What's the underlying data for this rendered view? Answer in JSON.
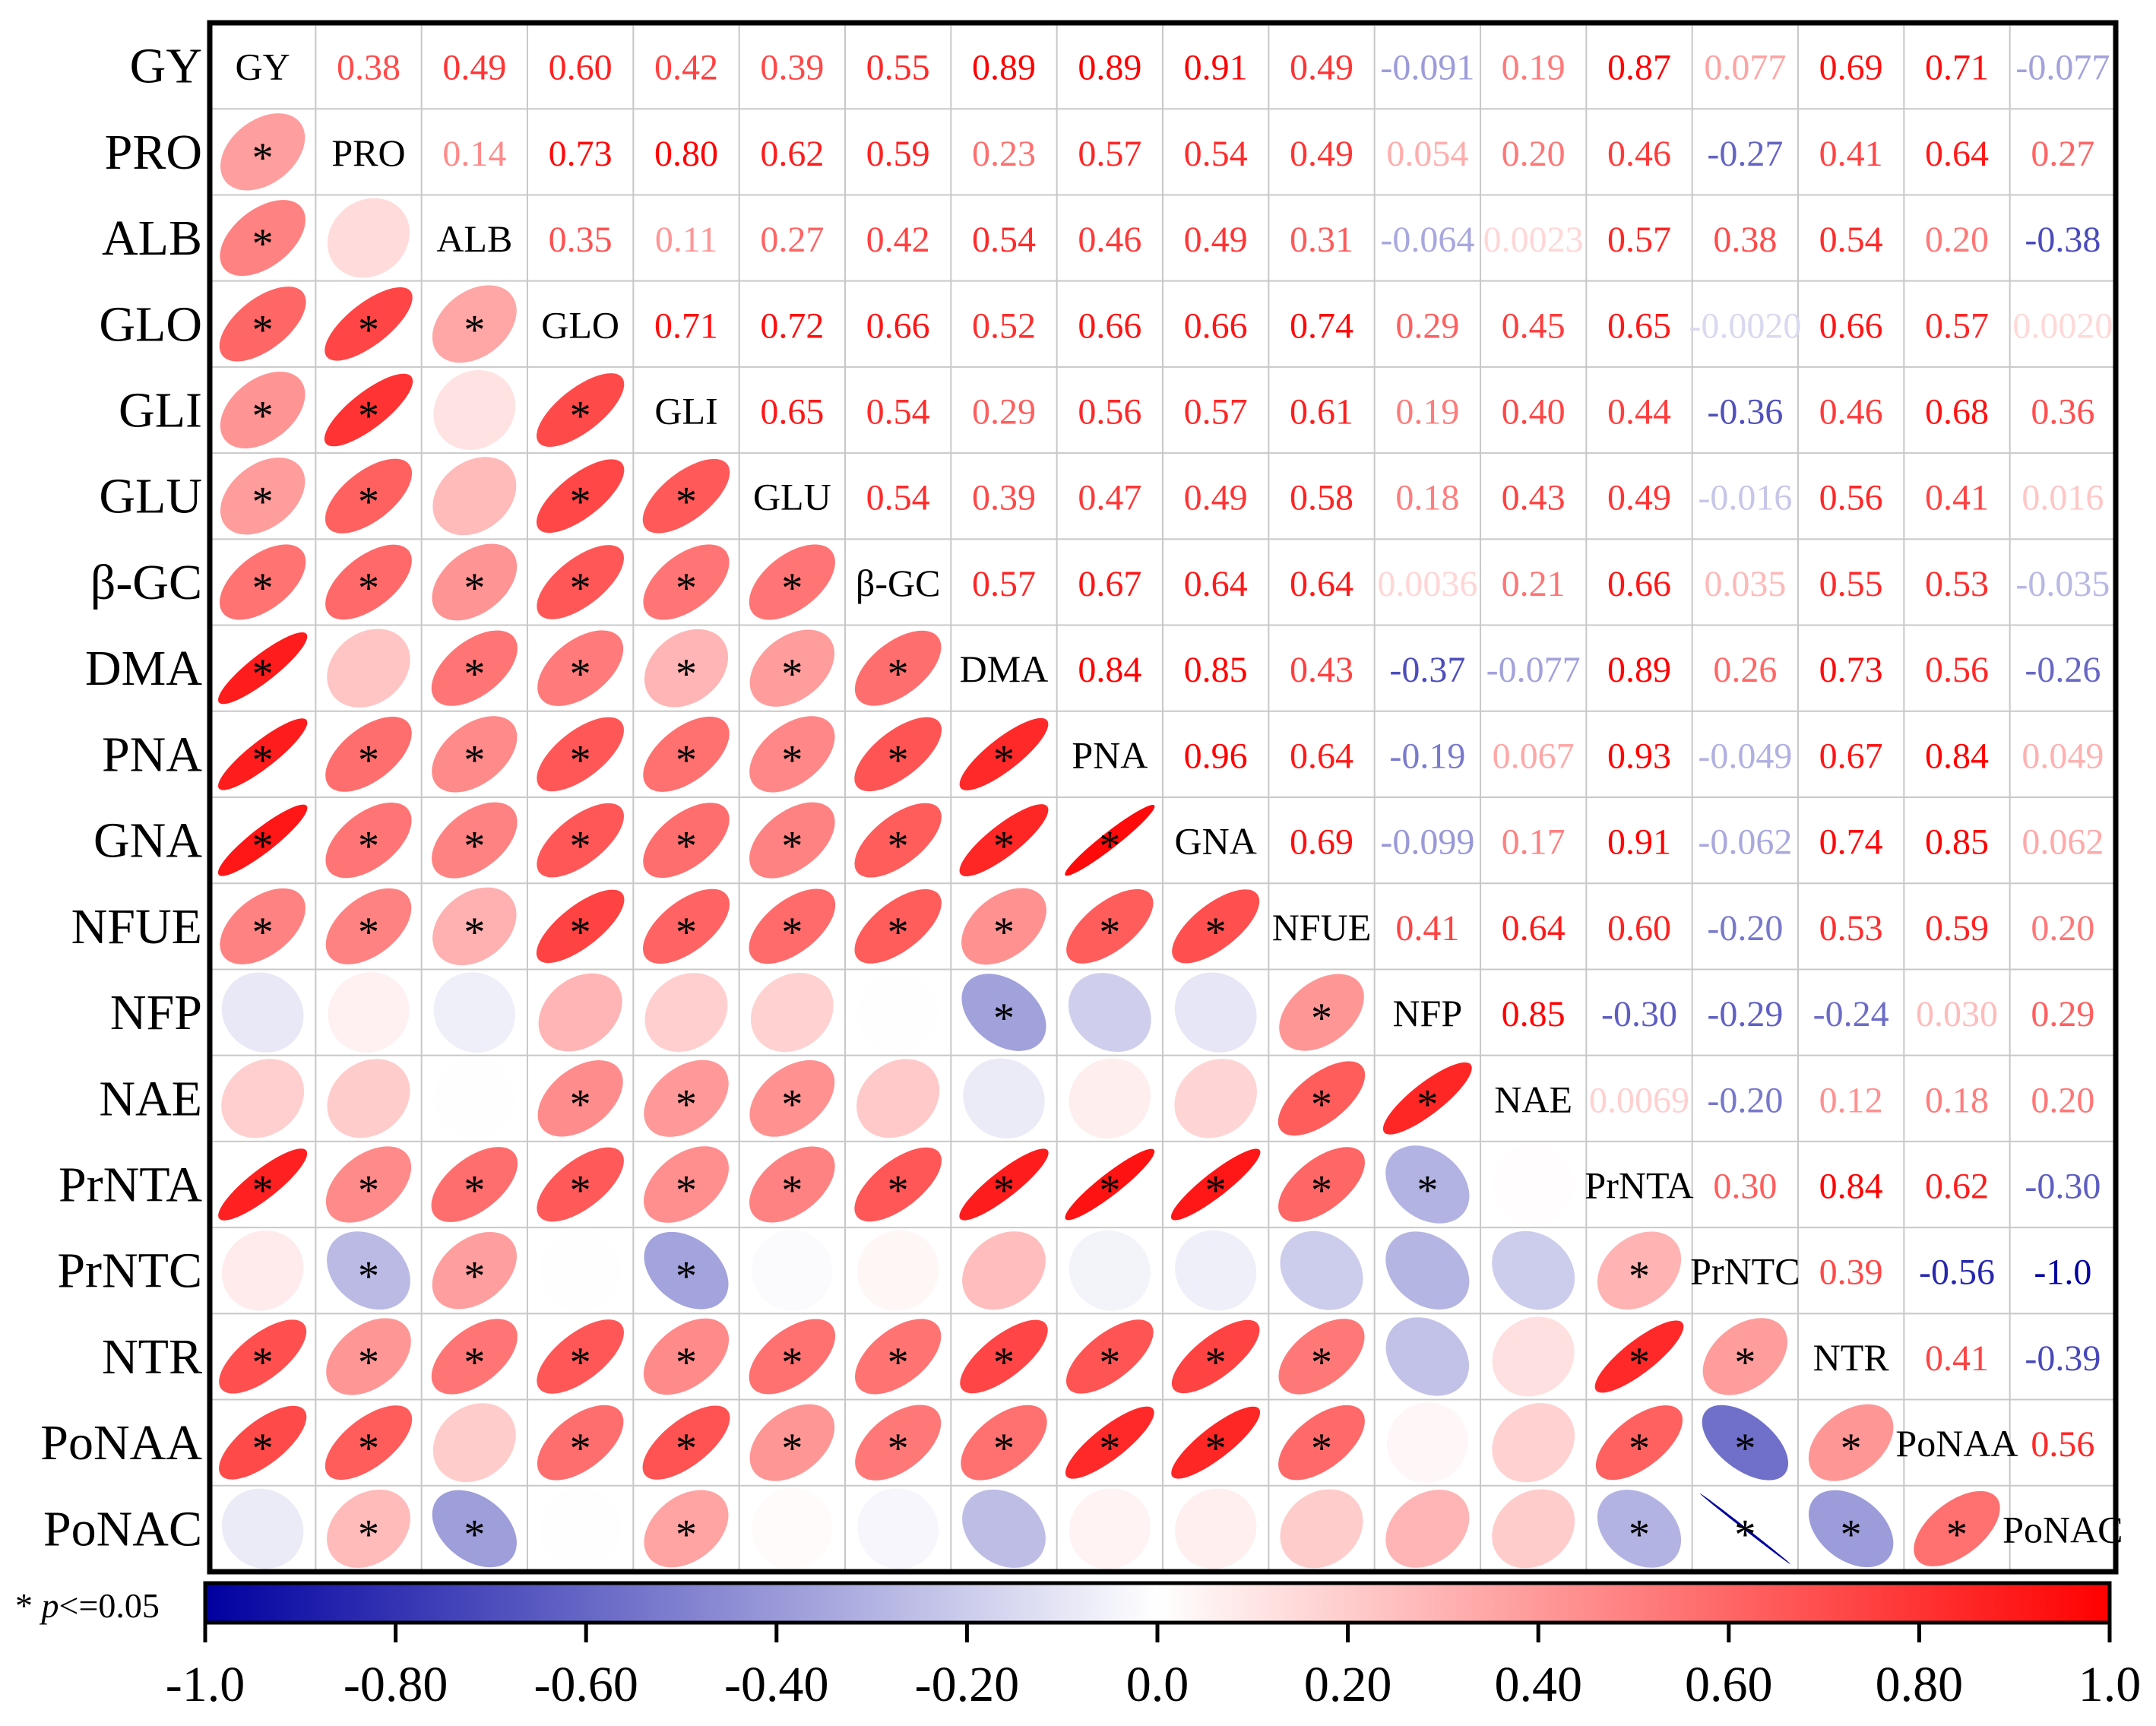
{
  "chart_data": {
    "type": "heatmap",
    "subtype": "correlation-matrix",
    "variables": [
      "GY",
      "PRO",
      "ALB",
      "GLO",
      "GLI",
      "GLU",
      "β-GC",
      "DMA",
      "PNA",
      "GNA",
      "NFUE",
      "NFP",
      "NAE",
      "PrNTA",
      "PrNTC",
      "NTR",
      "PoNAA",
      "PoNAC"
    ],
    "upper_labels": [
      [
        "0.38",
        "0.49",
        "0.60",
        "0.42",
        "0.39",
        "0.55",
        "0.89",
        "0.89",
        "0.91",
        "0.49",
        "-0.091",
        "0.19",
        "0.87",
        "0.077",
        "0.69",
        "0.71",
        "-0.077"
      ],
      [
        "0.14",
        "0.73",
        "0.80",
        "0.62",
        "0.59",
        "0.23",
        "0.57",
        "0.54",
        "0.49",
        "0.054",
        "0.20",
        "0.46",
        "-0.27",
        "0.41",
        "0.64",
        "0.27"
      ],
      [
        "0.35",
        "0.11",
        "0.27",
        "0.42",
        "0.54",
        "0.46",
        "0.49",
        "0.31",
        "-0.064",
        "0.0023",
        "0.57",
        "0.38",
        "0.54",
        "0.20",
        "-0.38"
      ],
      [
        "0.71",
        "0.72",
        "0.66",
        "0.52",
        "0.66",
        "0.66",
        "0.74",
        "0.29",
        "0.45",
        "0.65",
        "-0.0020",
        "0.66",
        "0.57",
        "0.0020"
      ],
      [
        "0.65",
        "0.54",
        "0.29",
        "0.56",
        "0.57",
        "0.61",
        "0.19",
        "0.40",
        "0.44",
        "-0.36",
        "0.46",
        "0.68",
        "0.36"
      ],
      [
        "0.54",
        "0.39",
        "0.47",
        "0.49",
        "0.58",
        "0.18",
        "0.43",
        "0.49",
        "-0.016",
        "0.56",
        "0.41",
        "0.016"
      ],
      [
        "0.57",
        "0.67",
        "0.64",
        "0.64",
        "0.0036",
        "0.21",
        "0.66",
        "0.035",
        "0.55",
        "0.53",
        "-0.035"
      ],
      [
        "0.84",
        "0.85",
        "0.43",
        "-0.37",
        "-0.077",
        "0.89",
        "0.26",
        "0.73",
        "0.56",
        "-0.26"
      ],
      [
        "0.96",
        "0.64",
        "-0.19",
        "0.067",
        "0.93",
        "-0.049",
        "0.67",
        "0.84",
        "0.049"
      ],
      [
        "0.69",
        "-0.099",
        "0.17",
        "0.91",
        "-0.062",
        "0.74",
        "0.85",
        "0.062"
      ],
      [
        "0.41",
        "0.64",
        "0.60",
        "-0.20",
        "0.53",
        "0.59",
        "0.20"
      ],
      [
        "0.85",
        "-0.30",
        "-0.29",
        "-0.24",
        "0.030",
        "0.29"
      ],
      [
        "0.0069",
        "-0.20",
        "0.12",
        "0.18",
        "0.20"
      ],
      [
        "0.30",
        "0.84",
        "0.62",
        "-0.30"
      ],
      [
        "0.39",
        "-0.56",
        "-1.0"
      ],
      [
        "0.41",
        "-0.39"
      ],
      [
        "0.56"
      ]
    ],
    "significant": [
      [],
      [
        1
      ],
      [
        1
      ],
      [
        1,
        1,
        1
      ],
      [
        1,
        1,
        0,
        1
      ],
      [
        1,
        1,
        0,
        1,
        1
      ],
      [
        1,
        1,
        1,
        1,
        1,
        1
      ],
      [
        1,
        0,
        1,
        1,
        1,
        1,
        1
      ],
      [
        1,
        1,
        1,
        1,
        1,
        1,
        1,
        1
      ],
      [
        1,
        1,
        1,
        1,
        1,
        1,
        1,
        1,
        1
      ],
      [
        1,
        1,
        1,
        1,
        1,
        1,
        1,
        1,
        1,
        1
      ],
      [
        0,
        0,
        0,
        0,
        0,
        0,
        0,
        1,
        0,
        0,
        1
      ],
      [
        0,
        0,
        0,
        1,
        1,
        1,
        0,
        0,
        0,
        0,
        1,
        1
      ],
      [
        1,
        1,
        1,
        1,
        1,
        1,
        1,
        1,
        1,
        1,
        1,
        1,
        0
      ],
      [
        0,
        1,
        1,
        0,
        1,
        0,
        0,
        0,
        0,
        0,
        0,
        0,
        0,
        1
      ],
      [
        1,
        1,
        1,
        1,
        1,
        1,
        1,
        1,
        1,
        1,
        1,
        0,
        0,
        1,
        1
      ],
      [
        1,
        1,
        0,
        1,
        1,
        1,
        1,
        1,
        1,
        1,
        1,
        0,
        0,
        1,
        1,
        1
      ],
      [
        0,
        1,
        1,
        0,
        1,
        0,
        0,
        0,
        0,
        0,
        0,
        0,
        0,
        1,
        1,
        1,
        1
      ]
    ],
    "significance_note": "* p<=0.05",
    "colorbar": {
      "range": [
        -1.0,
        1.0
      ],
      "ticks": [
        "-1.0",
        "-0.80",
        "-0.60",
        "-0.40",
        "-0.20",
        "0.0",
        "0.20",
        "0.40",
        "0.60",
        "0.80",
        "1.0"
      ],
      "low_color": "#0000a0",
      "mid_color": "#ffffff",
      "high_color": "#ff0000"
    }
  }
}
